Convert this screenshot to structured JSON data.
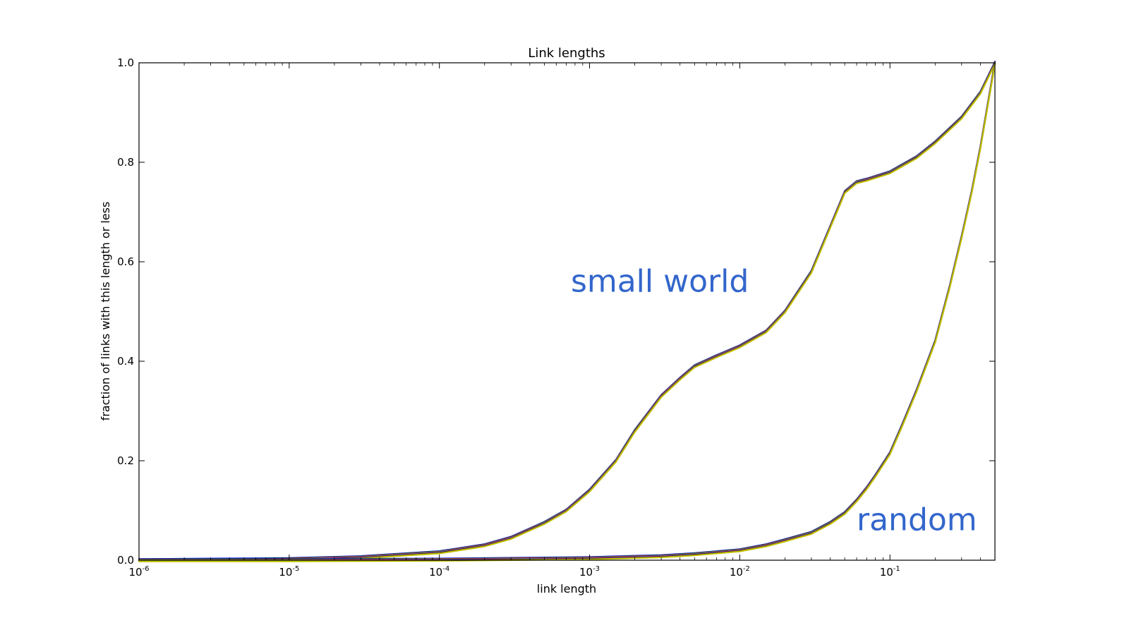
{
  "chart_data": {
    "type": "line",
    "title": "Link lengths",
    "xlabel": "link length",
    "ylabel": "fraction of links with this length or less",
    "xscale": "log",
    "xlim": [
      1e-06,
      0.5
    ],
    "ylim": [
      0,
      1.0
    ],
    "grid": false,
    "x_ticks": [
      {
        "value": 1e-06,
        "base": "10",
        "exp": "-6"
      },
      {
        "value": 1e-05,
        "base": "10",
        "exp": "-5"
      },
      {
        "value": 0.0001,
        "base": "10",
        "exp": "-4"
      },
      {
        "value": 0.001,
        "base": "10",
        "exp": "-3"
      },
      {
        "value": 0.01,
        "base": "10",
        "exp": "-2"
      },
      {
        "value": 0.1,
        "base": "10",
        "exp": "-1"
      }
    ],
    "y_ticks": [
      {
        "value": 0.0,
        "label": "0.0"
      },
      {
        "value": 0.2,
        "label": "0.2"
      },
      {
        "value": 0.4,
        "label": "0.4"
      },
      {
        "value": 0.6,
        "label": "0.6"
      },
      {
        "value": 0.8,
        "label": "0.8"
      },
      {
        "value": 1.0,
        "label": "1.0"
      }
    ],
    "annotations": [
      {
        "text": "small world",
        "x": 0.00075,
        "y": 0.54,
        "color": "#3366cc"
      },
      {
        "text": "random",
        "x": 0.06,
        "y": 0.06,
        "color": "#3366cc"
      }
    ],
    "series_colors": [
      "#0000ff",
      "#008000",
      "#ff0000",
      "#00bfbf",
      "#bf00bf",
      "#000000",
      "#bfbf00"
    ],
    "series": [
      {
        "group": "small world",
        "x": [
          1e-06,
          1e-05,
          3e-05,
          0.0001,
          0.0002,
          0.0003,
          0.0005,
          0.0007,
          0.001,
          0.0015,
          0.002,
          0.003,
          0.004,
          0.005,
          0.007,
          0.01,
          0.015,
          0.02,
          0.03,
          0.04,
          0.05,
          0.06,
          0.07,
          0.1,
          0.15,
          0.2,
          0.3,
          0.4,
          0.5
        ],
        "y": [
          0.0,
          0.002,
          0.006,
          0.016,
          0.03,
          0.045,
          0.075,
          0.1,
          0.14,
          0.2,
          0.26,
          0.33,
          0.365,
          0.39,
          0.41,
          0.43,
          0.46,
          0.5,
          0.58,
          0.67,
          0.74,
          0.76,
          0.765,
          0.78,
          0.81,
          0.84,
          0.89,
          0.94,
          1.0
        ]
      },
      {
        "group": "random",
        "x": [
          1e-06,
          1e-05,
          0.0001,
          0.001,
          0.003,
          0.005,
          0.01,
          0.015,
          0.02,
          0.03,
          0.04,
          0.05,
          0.06,
          0.07,
          0.08,
          0.1,
          0.12,
          0.15,
          0.2,
          0.25,
          0.3,
          0.35,
          0.4,
          0.45,
          0.5
        ],
        "y": [
          0.0,
          0.0,
          0.001,
          0.004,
          0.008,
          0.012,
          0.02,
          0.03,
          0.04,
          0.055,
          0.075,
          0.095,
          0.12,
          0.145,
          0.17,
          0.215,
          0.27,
          0.34,
          0.44,
          0.55,
          0.65,
          0.74,
          0.83,
          0.92,
          1.0
        ]
      }
    ]
  }
}
